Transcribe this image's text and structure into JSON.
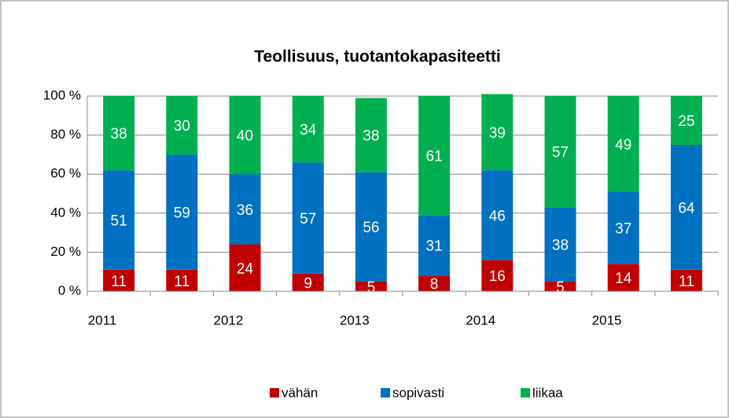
{
  "chart_data": {
    "type": "stacked_bar",
    "title": "Teollisuus, tuotantokapasiteetti",
    "categories": [
      "2011",
      null,
      "2012",
      null,
      "2013",
      null,
      "2014",
      null,
      "2015",
      null
    ],
    "series": [
      {
        "name": "vähän",
        "color": "#c00000",
        "values": [
          11,
          11,
          24,
          9,
          5,
          8,
          16,
          5,
          14,
          11
        ]
      },
      {
        "name": "sopivasti",
        "color": "#0070c0",
        "values": [
          51,
          59,
          36,
          57,
          56,
          31,
          46,
          38,
          37,
          64
        ]
      },
      {
        "name": "liikaa",
        "color": "#00b050",
        "values": [
          38,
          30,
          40,
          34,
          38,
          61,
          39,
          57,
          49,
          25
        ]
      }
    ],
    "ylim": [
      0,
      100
    ],
    "yticks": [
      {
        "value": 0,
        "label": "0 %"
      },
      {
        "value": 20,
        "label": "20 %"
      },
      {
        "value": 40,
        "label": "40 %"
      },
      {
        "value": 60,
        "label": "60 %"
      },
      {
        "value": 80,
        "label": "80 %"
      },
      {
        "value": 100,
        "label": "100 %"
      }
    ],
    "grid": true,
    "legend": "bottom"
  }
}
